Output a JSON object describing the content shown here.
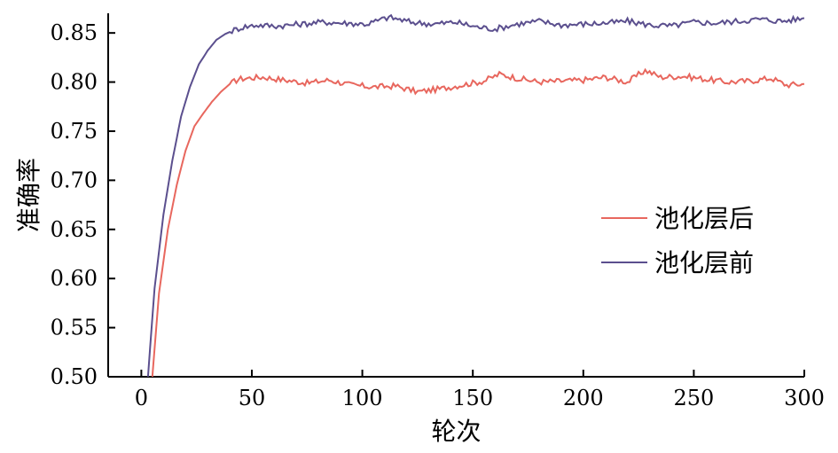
{
  "chart_data": {
    "type": "line",
    "title": "",
    "xlabel": "轮次",
    "ylabel": "准确率",
    "xlim": [
      -15,
      300
    ],
    "ylim": [
      0.5,
      0.87
    ],
    "xticks": [
      0,
      50,
      100,
      150,
      200,
      250,
      300
    ],
    "yticks": [
      0.5,
      0.55,
      0.6,
      0.65,
      0.7,
      0.75,
      0.8,
      0.85
    ],
    "xtick_labels": [
      "0",
      "50",
      "100",
      "150",
      "200",
      "250",
      "300"
    ],
    "ytick_labels": [
      "0.50",
      "0.55",
      "0.60",
      "0.65",
      "0.70",
      "0.75",
      "0.80",
      "0.85"
    ],
    "grid": false,
    "legend_position": "center-right",
    "series": [
      {
        "name": "池化层后",
        "color": "#e8675e",
        "points": [
          [
            5,
            0.5
          ],
          [
            8,
            0.585
          ],
          [
            12,
            0.65
          ],
          [
            16,
            0.695
          ],
          [
            20,
            0.73
          ],
          [
            24,
            0.755
          ],
          [
            28,
            0.768
          ],
          [
            32,
            0.78
          ],
          [
            36,
            0.79
          ],
          [
            40,
            0.798
          ],
          [
            44,
            0.803
          ],
          [
            48,
            0.804
          ],
          [
            55,
            0.805
          ],
          [
            65,
            0.802
          ],
          [
            75,
            0.799
          ],
          [
            85,
            0.802
          ],
          [
            95,
            0.797
          ],
          [
            105,
            0.795
          ],
          [
            115,
            0.796
          ],
          [
            125,
            0.79
          ],
          [
            135,
            0.793
          ],
          [
            145,
            0.797
          ],
          [
            155,
            0.801
          ],
          [
            162,
            0.808
          ],
          [
            170,
            0.804
          ],
          [
            180,
            0.8
          ],
          [
            190,
            0.801
          ],
          [
            200,
            0.802
          ],
          [
            210,
            0.805
          ],
          [
            220,
            0.8
          ],
          [
            228,
            0.812
          ],
          [
            235,
            0.805
          ],
          [
            245,
            0.806
          ],
          [
            255,
            0.803
          ],
          [
            265,
            0.8
          ],
          [
            275,
            0.801
          ],
          [
            285,
            0.804
          ],
          [
            292,
            0.797
          ],
          [
            300,
            0.798
          ]
        ]
      },
      {
        "name": "池化层前",
        "color": "#5b4f8e",
        "points": [
          [
            3,
            0.5
          ],
          [
            6,
            0.59
          ],
          [
            10,
            0.665
          ],
          [
            14,
            0.72
          ],
          [
            18,
            0.765
          ],
          [
            22,
            0.795
          ],
          [
            26,
            0.818
          ],
          [
            30,
            0.832
          ],
          [
            34,
            0.843
          ],
          [
            38,
            0.849
          ],
          [
            42,
            0.853
          ],
          [
            46,
            0.856
          ],
          [
            52,
            0.858
          ],
          [
            62,
            0.857
          ],
          [
            72,
            0.859
          ],
          [
            82,
            0.861
          ],
          [
            92,
            0.86
          ],
          [
            102,
            0.859
          ],
          [
            112,
            0.866
          ],
          [
            122,
            0.861
          ],
          [
            132,
            0.859
          ],
          [
            142,
            0.861
          ],
          [
            152,
            0.856
          ],
          [
            160,
            0.854
          ],
          [
            170,
            0.859
          ],
          [
            180,
            0.862
          ],
          [
            190,
            0.858
          ],
          [
            200,
            0.859
          ],
          [
            210,
            0.86
          ],
          [
            220,
            0.862
          ],
          [
            230,
            0.858
          ],
          [
            240,
            0.857
          ],
          [
            250,
            0.861
          ],
          [
            260,
            0.86
          ],
          [
            270,
            0.862
          ],
          [
            280,
            0.864
          ],
          [
            290,
            0.862
          ],
          [
            300,
            0.865
          ]
        ]
      }
    ]
  }
}
